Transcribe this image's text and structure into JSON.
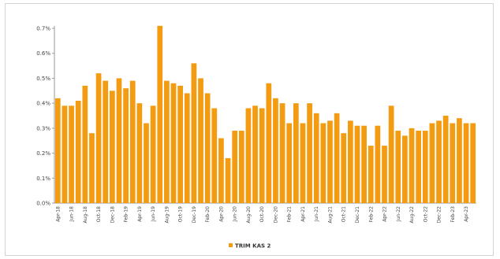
{
  "chart_data": {
    "type": "bar",
    "categories": [
      "Apr-18",
      "May-18",
      "Jun-18",
      "Jul-18",
      "Aug-18",
      "Sep-18",
      "Oct-18",
      "Nov-18",
      "Dec-18",
      "Jan-19",
      "Feb-19",
      "Mar-19",
      "Apr-19",
      "May-19",
      "Jun-19",
      "Jul-19",
      "Aug-19",
      "Sep-19",
      "Oct-19",
      "Nov-19",
      "Dec-19",
      "Jan-20",
      "Feb-20",
      "Mar-20",
      "Apr-20",
      "May-20",
      "Jun-20",
      "Jul-20",
      "Aug-20",
      "Sep-20",
      "Oct-20",
      "Nov-20",
      "Dec-20",
      "Jan-21",
      "Feb-21",
      "Mar-21",
      "Apr-21",
      "May-21",
      "Jun-21",
      "Jul-21",
      "Aug-21",
      "Sep-21",
      "Oct-21",
      "Nov-21",
      "Dec-21",
      "Jan-22",
      "Feb-22",
      "Mar-22",
      "Apr-22",
      "May-22",
      "Jun-22",
      "Jul-22",
      "Aug-22",
      "Sep-22",
      "Oct-22",
      "Nov-22",
      "Dec-22",
      "Jan-23",
      "Feb-23",
      "Mar-23",
      "Apr-23",
      "May-23"
    ],
    "tick_labels": [
      "Apr-18",
      "Jun-18",
      "Aug-18",
      "Oct-18",
      "Dec-18",
      "Feb-19",
      "Apr-19",
      "Jun-19",
      "Aug-19",
      "Oct-19",
      "Dec-19",
      "Feb-20",
      "Apr-20",
      "Jun-20",
      "Aug-20",
      "Oct-20",
      "Dec-20",
      "Feb-21",
      "Apr-21",
      "Jun-21",
      "Aug-21",
      "Oct-21",
      "Dec-21",
      "Feb-22",
      "Apr-22",
      "Jun-22",
      "Aug-22",
      "Oct-22",
      "Dec-22",
      "Feb-23",
      "Apr-23"
    ],
    "series": [
      {
        "name": "TRIM KAS 2",
        "color": "#F39C12",
        "values": [
          0.42,
          0.39,
          0.39,
          0.41,
          0.47,
          0.28,
          0.52,
          0.49,
          0.45,
          0.5,
          0.46,
          0.49,
          0.4,
          0.32,
          0.39,
          0.71,
          0.49,
          0.48,
          0.47,
          0.44,
          0.56,
          0.5,
          0.44,
          0.38,
          0.26,
          0.18,
          0.29,
          0.29,
          0.38,
          0.39,
          0.38,
          0.48,
          0.42,
          0.4,
          0.32,
          0.4,
          0.32,
          0.4,
          0.36,
          0.32,
          0.33,
          0.36,
          0.28,
          0.33,
          0.31,
          0.31,
          0.23,
          0.31,
          0.23,
          0.39,
          0.29,
          0.27,
          0.3,
          0.29,
          0.29,
          0.32,
          0.33,
          0.35,
          0.32,
          0.34,
          0.32,
          0.32
        ]
      }
    ],
    "y_ticks": [
      "0.0%",
      "0.1%",
      "0.2%",
      "0.3%",
      "0.4%",
      "0.5%",
      "0.6%",
      "0.7%"
    ],
    "ylim": [
      0,
      0.7
    ],
    "grid": false,
    "legend_position": "bottom"
  }
}
